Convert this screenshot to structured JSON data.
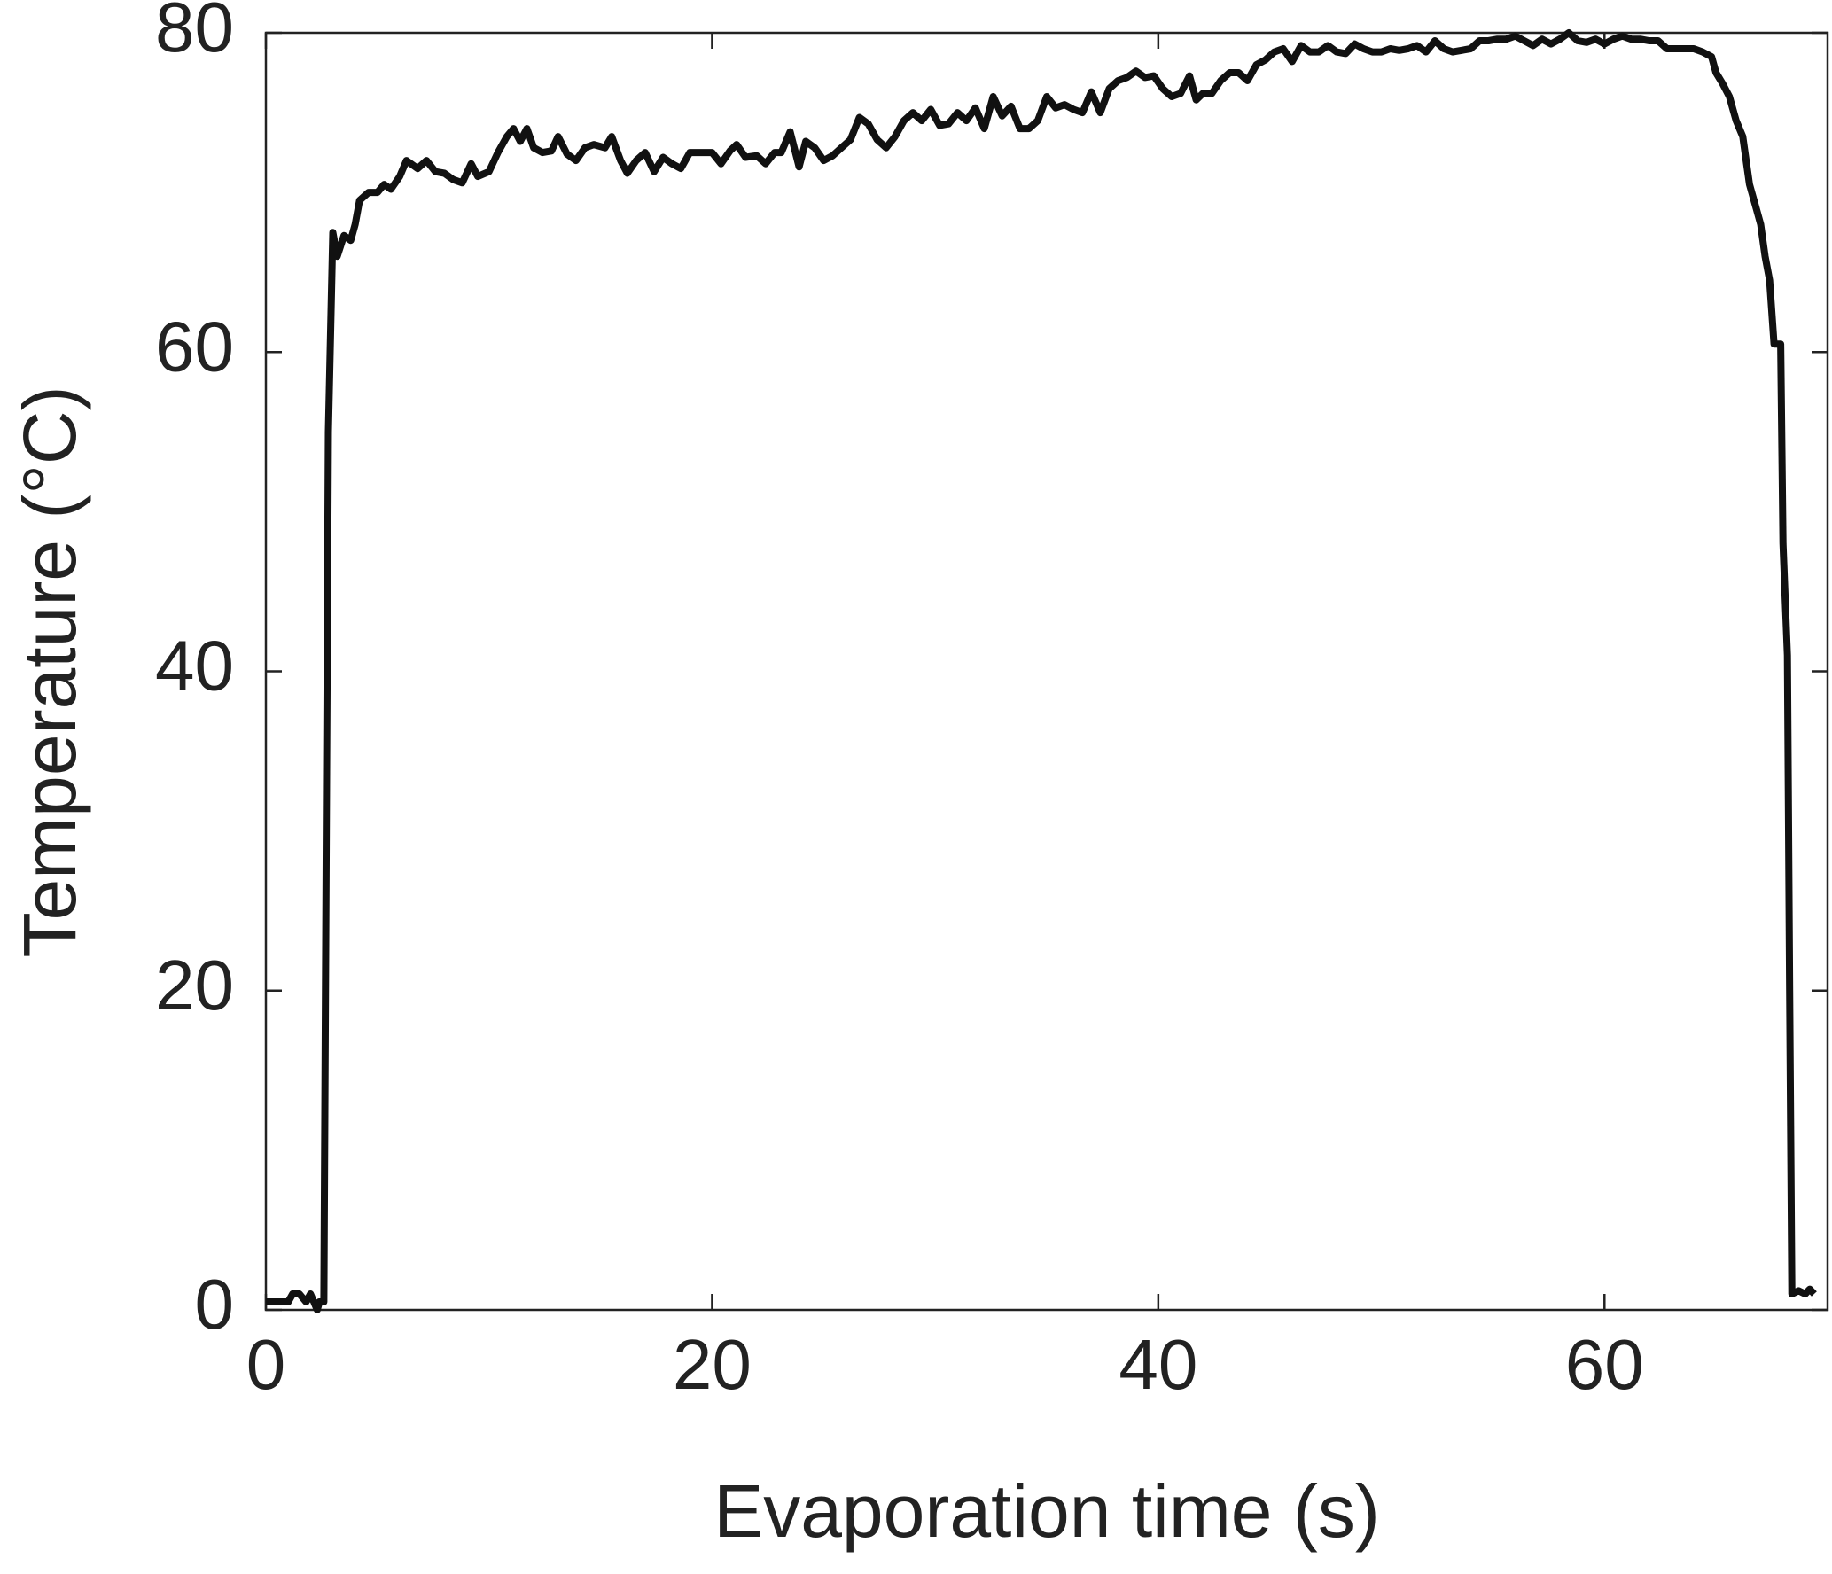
{
  "chart_data": {
    "type": "line",
    "x_label": "Evaporation time (s)",
    "y_label": "Temperature (°C)",
    "color": "#111111",
    "xlim": [
      0,
      70
    ],
    "xticks": [
      0,
      20,
      40,
      60
    ],
    "ylim": [
      0,
      80
    ],
    "yticks": [
      0,
      20,
      40,
      60,
      80
    ],
    "grid": false,
    "x": [
      0,
      1,
      1.2,
      1.5,
      1.8,
      2.0,
      2.3,
      2.4,
      2.6,
      2.8,
      3.0,
      3.2,
      3.5,
      3.8,
      4.0,
      4.2,
      4.6,
      5.0,
      5.3,
      5.6,
      6.0,
      6.3,
      6.8,
      7.2,
      7.6,
      8.0,
      8.4,
      8.8,
      9.2,
      9.5,
      10.0,
      10.4,
      10.8,
      11.1,
      11.4,
      11.7,
      12.0,
      12.4,
      12.8,
      13.1,
      13.5,
      13.9,
      14.3,
      14.7,
      15.2,
      15.5,
      15.9,
      16.2,
      16.6,
      17.0,
      17.4,
      17.8,
      18.2,
      18.6,
      19.0,
      19.5,
      20.0,
      20.4,
      20.8,
      21.1,
      21.5,
      22.0,
      22.4,
      22.8,
      23.1,
      23.5,
      23.9,
      24.2,
      24.6,
      25.0,
      25.4,
      25.8,
      26.2,
      26.6,
      27.0,
      27.4,
      27.8,
      28.2,
      28.6,
      29.0,
      29.4,
      29.8,
      30.2,
      30.6,
      31.0,
      31.4,
      31.8,
      32.2,
      32.6,
      33.0,
      33.4,
      33.8,
      34.2,
      34.6,
      35.0,
      35.4,
      35.8,
      36.2,
      36.6,
      37.0,
      37.4,
      37.8,
      38.2,
      38.6,
      39.0,
      39.4,
      39.8,
      40.2,
      40.6,
      41.0,
      41.4,
      41.7,
      42.0,
      42.4,
      42.8,
      43.2,
      43.6,
      44.0,
      44.4,
      44.8,
      45.2,
      45.6,
      46.0,
      46.4,
      46.8,
      47.2,
      47.6,
      48.0,
      48.4,
      48.8,
      49.2,
      49.6,
      50.0,
      50.4,
      50.8,
      51.2,
      51.6,
      52.0,
      52.4,
      52.8,
      53.2,
      53.6,
      54.0,
      54.4,
      54.8,
      55.2,
      55.6,
      56.0,
      56.4,
      56.8,
      57.2,
      57.6,
      58.0,
      58.4,
      58.8,
      59.2,
      59.6,
      60.0,
      60.4,
      60.8,
      61.2,
      61.6,
      62.0,
      62.4,
      62.8,
      63.2,
      63.6,
      64.0,
      64.4,
      64.8,
      65.0,
      65.3,
      65.6,
      65.9,
      66.2,
      66.5,
      66.8,
      67.0,
      67.2,
      67.4,
      67.6,
      67.9,
      68.0,
      68.2,
      68.3,
      68.4,
      68.7,
      69.0,
      69.2,
      69.4
    ],
    "values": [
      0.5,
      0.5,
      1.0,
      1.0,
      0.5,
      1.0,
      0,
      0.5,
      0.5,
      55,
      67.5,
      66,
      67.3,
      67,
      68,
      69.5,
      70,
      70,
      70.5,
      70.2,
      71,
      72,
      71.5,
      72,
      71.3,
      71.2,
      70.8,
      70.6,
      71.8,
      71.0,
      71.3,
      72.5,
      73.5,
      74.0,
      73.2,
      74.0,
      72.8,
      72.5,
      72.6,
      73.5,
      72.4,
      72.0,
      72.8,
      73.0,
      72.8,
      73.5,
      72.0,
      71.2,
      72.0,
      72.5,
      71.3,
      72.2,
      71.8,
      71.5,
      72.5,
      72.5,
      72.5,
      71.8,
      72.6,
      73.0,
      72.2,
      72.3,
      71.8,
      72.5,
      72.5,
      73.8,
      71.6,
      73.2,
      72.8,
      72.0,
      72.3,
      72.8,
      73.3,
      74.7,
      74.3,
      73.3,
      72.8,
      73.5,
      74.5,
      75.0,
      74.5,
      75.2,
      74.2,
      74.3,
      75.0,
      74.5,
      75.3,
      74.0,
      76.0,
      74.8,
      75.4,
      74.0,
      74.0,
      74.5,
      76.0,
      75.3,
      75.5,
      75.2,
      75.0,
      76.3,
      75.0,
      76.5,
      77.0,
      77.2,
      77.6,
      77.2,
      77.3,
      76.5,
      76.0,
      76.2,
      77.3,
      75.8,
      76.2,
      76.2,
      77.0,
      77.5,
      77.5,
      77.0,
      78.0,
      78.3,
      78.8,
      79.0,
      78.2,
      79.2,
      78.8,
      78.8,
      79.2,
      78.8,
      78.7,
      79.3,
      79.0,
      78.8,
      78.8,
      79.0,
      78.9,
      79.0,
      79.2,
      78.8,
      79.5,
      79.0,
      78.8,
      78.9,
      79.0,
      79.5,
      79.5,
      79.6,
      79.6,
      79.8,
      79.5,
      79.2,
      79.6,
      79.3,
      79.6,
      80.0,
      79.5,
      79.4,
      79.6,
      79.3,
      79.6,
      79.8,
      79.6,
      79.6,
      79.5,
      79.5,
      79.0,
      79.0,
      79.0,
      79.0,
      78.8,
      78.5,
      77.5,
      76.8,
      76.0,
      74.5,
      73.5,
      70.5,
      69.0,
      68.0,
      66.0,
      64.5,
      60.5,
      60.5,
      48.0,
      41.0,
      20.0,
      1.0,
      1.2,
      1.0,
      1.3,
      1.0
    ]
  }
}
